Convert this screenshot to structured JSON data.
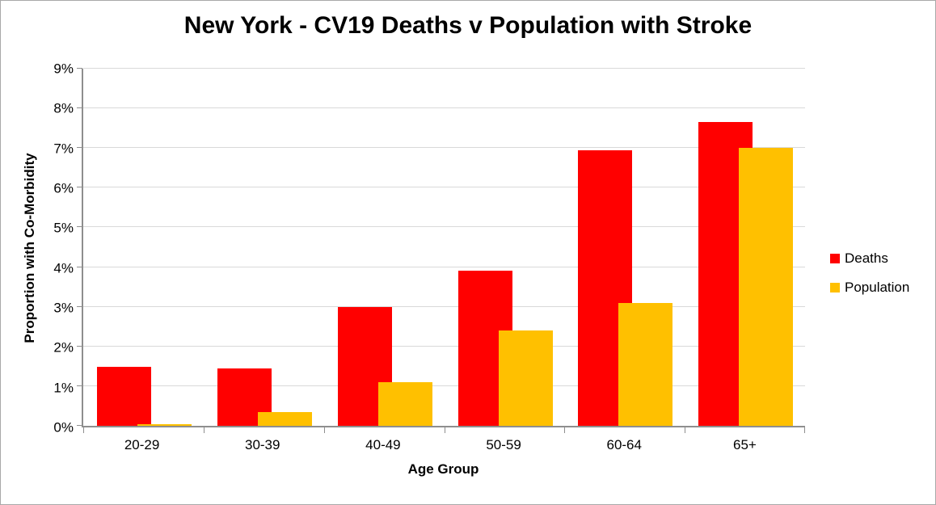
{
  "chart_data": {
    "type": "bar",
    "title": "New York - CV19 Deaths v Population with Stroke",
    "xlabel": "Age Group",
    "ylabel": "Proportion with Co-Morbidity",
    "categories": [
      "20-29",
      "30-39",
      "40-49",
      "50-59",
      "60-64",
      "65+"
    ],
    "series": [
      {
        "name": "Deaths",
        "color": "#FF0000",
        "values": [
          1.48,
          1.45,
          3.0,
          3.9,
          6.95,
          7.65
        ]
      },
      {
        "name": "Population",
        "color": "#FFC000",
        "values": [
          0.05,
          0.35,
          1.1,
          2.4,
          3.1,
          7.0
        ]
      }
    ],
    "ylim": [
      0,
      9
    ],
    "y_tick_step": 1,
    "y_tick_format": "percent",
    "y_tick_labels": [
      "0%",
      "1%",
      "2%",
      "3%",
      "4%",
      "5%",
      "6%",
      "7%",
      "8%",
      "9%"
    ],
    "grid": true,
    "legend_position": "right",
    "colors": {
      "gridline": "#d9d9d9",
      "axis_line": "#8e8e8e",
      "text": "#000000",
      "background": "#ffffff"
    }
  }
}
